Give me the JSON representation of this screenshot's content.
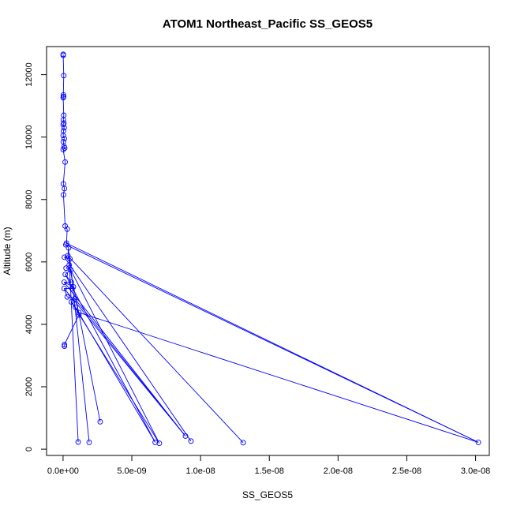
{
  "chart_data": {
    "type": "line",
    "title": "ATOM1 Northeast_Pacific SS_GEOS5",
    "xlabel": "SS_GEOS5",
    "ylabel": "Altitude (m)",
    "xlim": [
      -1.2e-09,
      3.1e-08
    ],
    "ylim": [
      -200,
      12900
    ],
    "xticks": [
      0,
      5e-09,
      1e-08,
      1.5e-08,
      2e-08,
      2.5e-08,
      3e-08
    ],
    "xtick_labels": [
      "0.0e+00",
      "5.0e-09",
      "1.0e-08",
      "1.5e-08",
      "2.0e-08",
      "2.5e-08",
      "3.0e-08"
    ],
    "yticks": [
      0,
      2000,
      4000,
      6000,
      8000,
      10000,
      12000
    ],
    "ytick_labels": [
      "0",
      "2000",
      "4000",
      "6000",
      "8000",
      "10000",
      "12000"
    ],
    "grid": false,
    "series_color": "#0000ff",
    "series": [
      {
        "points": [
          [
            1e-11,
            12650
          ],
          [
            1e-11,
            12620
          ],
          [
            5e-11,
            11970
          ],
          [
            2e-11,
            11350
          ],
          [
            4e-11,
            11300
          ],
          [
            1e-11,
            11260
          ],
          [
            5e-11,
            10700
          ],
          [
            2e-11,
            10550
          ],
          [
            6e-11,
            10450
          ],
          [
            1e-11,
            10400
          ],
          [
            8e-11,
            10300
          ],
          [
            3e-11,
            10200
          ],
          [
            1e-11,
            10050
          ],
          [
            9e-11,
            9950
          ],
          [
            2e-11,
            9850
          ],
          [
            7e-11,
            9700
          ],
          [
            1.2e-10,
            9650
          ],
          [
            1e-11,
            9600
          ],
          [
            1.5e-10,
            9200
          ],
          [
            2e-11,
            8500
          ],
          [
            1e-10,
            8350
          ],
          [
            3e-11,
            8150
          ],
          [
            1.5e-10,
            7150
          ],
          [
            3e-10,
            7050
          ],
          [
            2.5e-10,
            6600
          ],
          [
            2e-10,
            6550
          ],
          [
            4e-10,
            6450
          ],
          [
            3.5e-10,
            6200
          ],
          [
            1e-10,
            6150
          ],
          [
            5e-10,
            6100
          ],
          [
            4.5e-10,
            5900
          ],
          [
            2.2e-10,
            5800
          ],
          [
            5.5e-10,
            5750
          ],
          [
            1.6e-10,
            5600
          ],
          [
            6e-10,
            5350
          ],
          [
            8e-11,
            5350
          ],
          [
            7.5e-10,
            5200
          ],
          [
            6.5e-10,
            5150
          ],
          [
            8e-11,
            5150
          ],
          [
            3e-10,
            4880
          ],
          [
            8.5e-10,
            4820
          ],
          [
            6e-10,
            4720
          ],
          [
            9e-10,
            4550
          ],
          [
            1.15e-09,
            4380
          ],
          [
            1.15e-09,
            4300
          ],
          [
            1e-10,
            3350
          ],
          [
            1e-10,
            3300
          ],
          [
            1.1e-09,
            230
          ],
          [
            1.9e-09,
            220
          ],
          [
            2.7e-09,
            880
          ],
          [
            6.7e-09,
            220
          ],
          [
            7e-09,
            190
          ],
          [
            8.9e-09,
            420
          ],
          [
            9.3e-09,
            260
          ],
          [
            1.31e-08,
            210
          ],
          [
            3.02e-08,
            220
          ]
        ],
        "segments": [
          [
            0,
            1
          ],
          [
            1,
            2
          ],
          [
            2,
            3
          ],
          [
            3,
            4
          ],
          [
            4,
            5
          ],
          [
            5,
            6
          ],
          [
            6,
            7
          ],
          [
            7,
            8
          ],
          [
            8,
            9
          ],
          [
            9,
            10
          ],
          [
            10,
            11
          ],
          [
            11,
            12
          ],
          [
            12,
            13
          ],
          [
            13,
            14
          ],
          [
            14,
            15
          ],
          [
            15,
            16
          ],
          [
            16,
            17
          ],
          [
            17,
            18
          ],
          [
            18,
            19
          ],
          [
            19,
            20
          ],
          [
            20,
            21
          ],
          [
            21,
            22
          ],
          [
            22,
            23
          ],
          [
            23,
            24
          ],
          [
            24,
            25
          ],
          [
            25,
            26
          ],
          [
            26,
            27
          ],
          [
            27,
            28
          ],
          [
            28,
            29
          ],
          [
            29,
            30
          ],
          [
            30,
            31
          ],
          [
            31,
            32
          ],
          [
            32,
            33
          ],
          [
            33,
            34
          ],
          [
            34,
            35
          ],
          [
            35,
            36
          ],
          [
            36,
            37
          ],
          [
            37,
            38
          ],
          [
            38,
            39
          ],
          [
            39,
            40
          ],
          [
            40,
            41
          ],
          [
            41,
            42
          ],
          [
            42,
            43
          ],
          [
            43,
            44
          ],
          [
            44,
            45
          ],
          [
            45,
            46
          ],
          [
            26,
            47
          ],
          [
            29,
            48
          ],
          [
            30,
            49
          ],
          [
            33,
            50
          ],
          [
            32,
            51
          ],
          [
            35,
            52
          ],
          [
            28,
            53
          ],
          [
            27,
            54
          ],
          [
            25,
            55
          ],
          [
            24,
            55
          ],
          [
            42,
            50
          ],
          [
            41,
            51
          ],
          [
            43,
            55
          ],
          [
            38,
            52
          ],
          [
            40,
            52
          ]
        ]
      }
    ]
  }
}
